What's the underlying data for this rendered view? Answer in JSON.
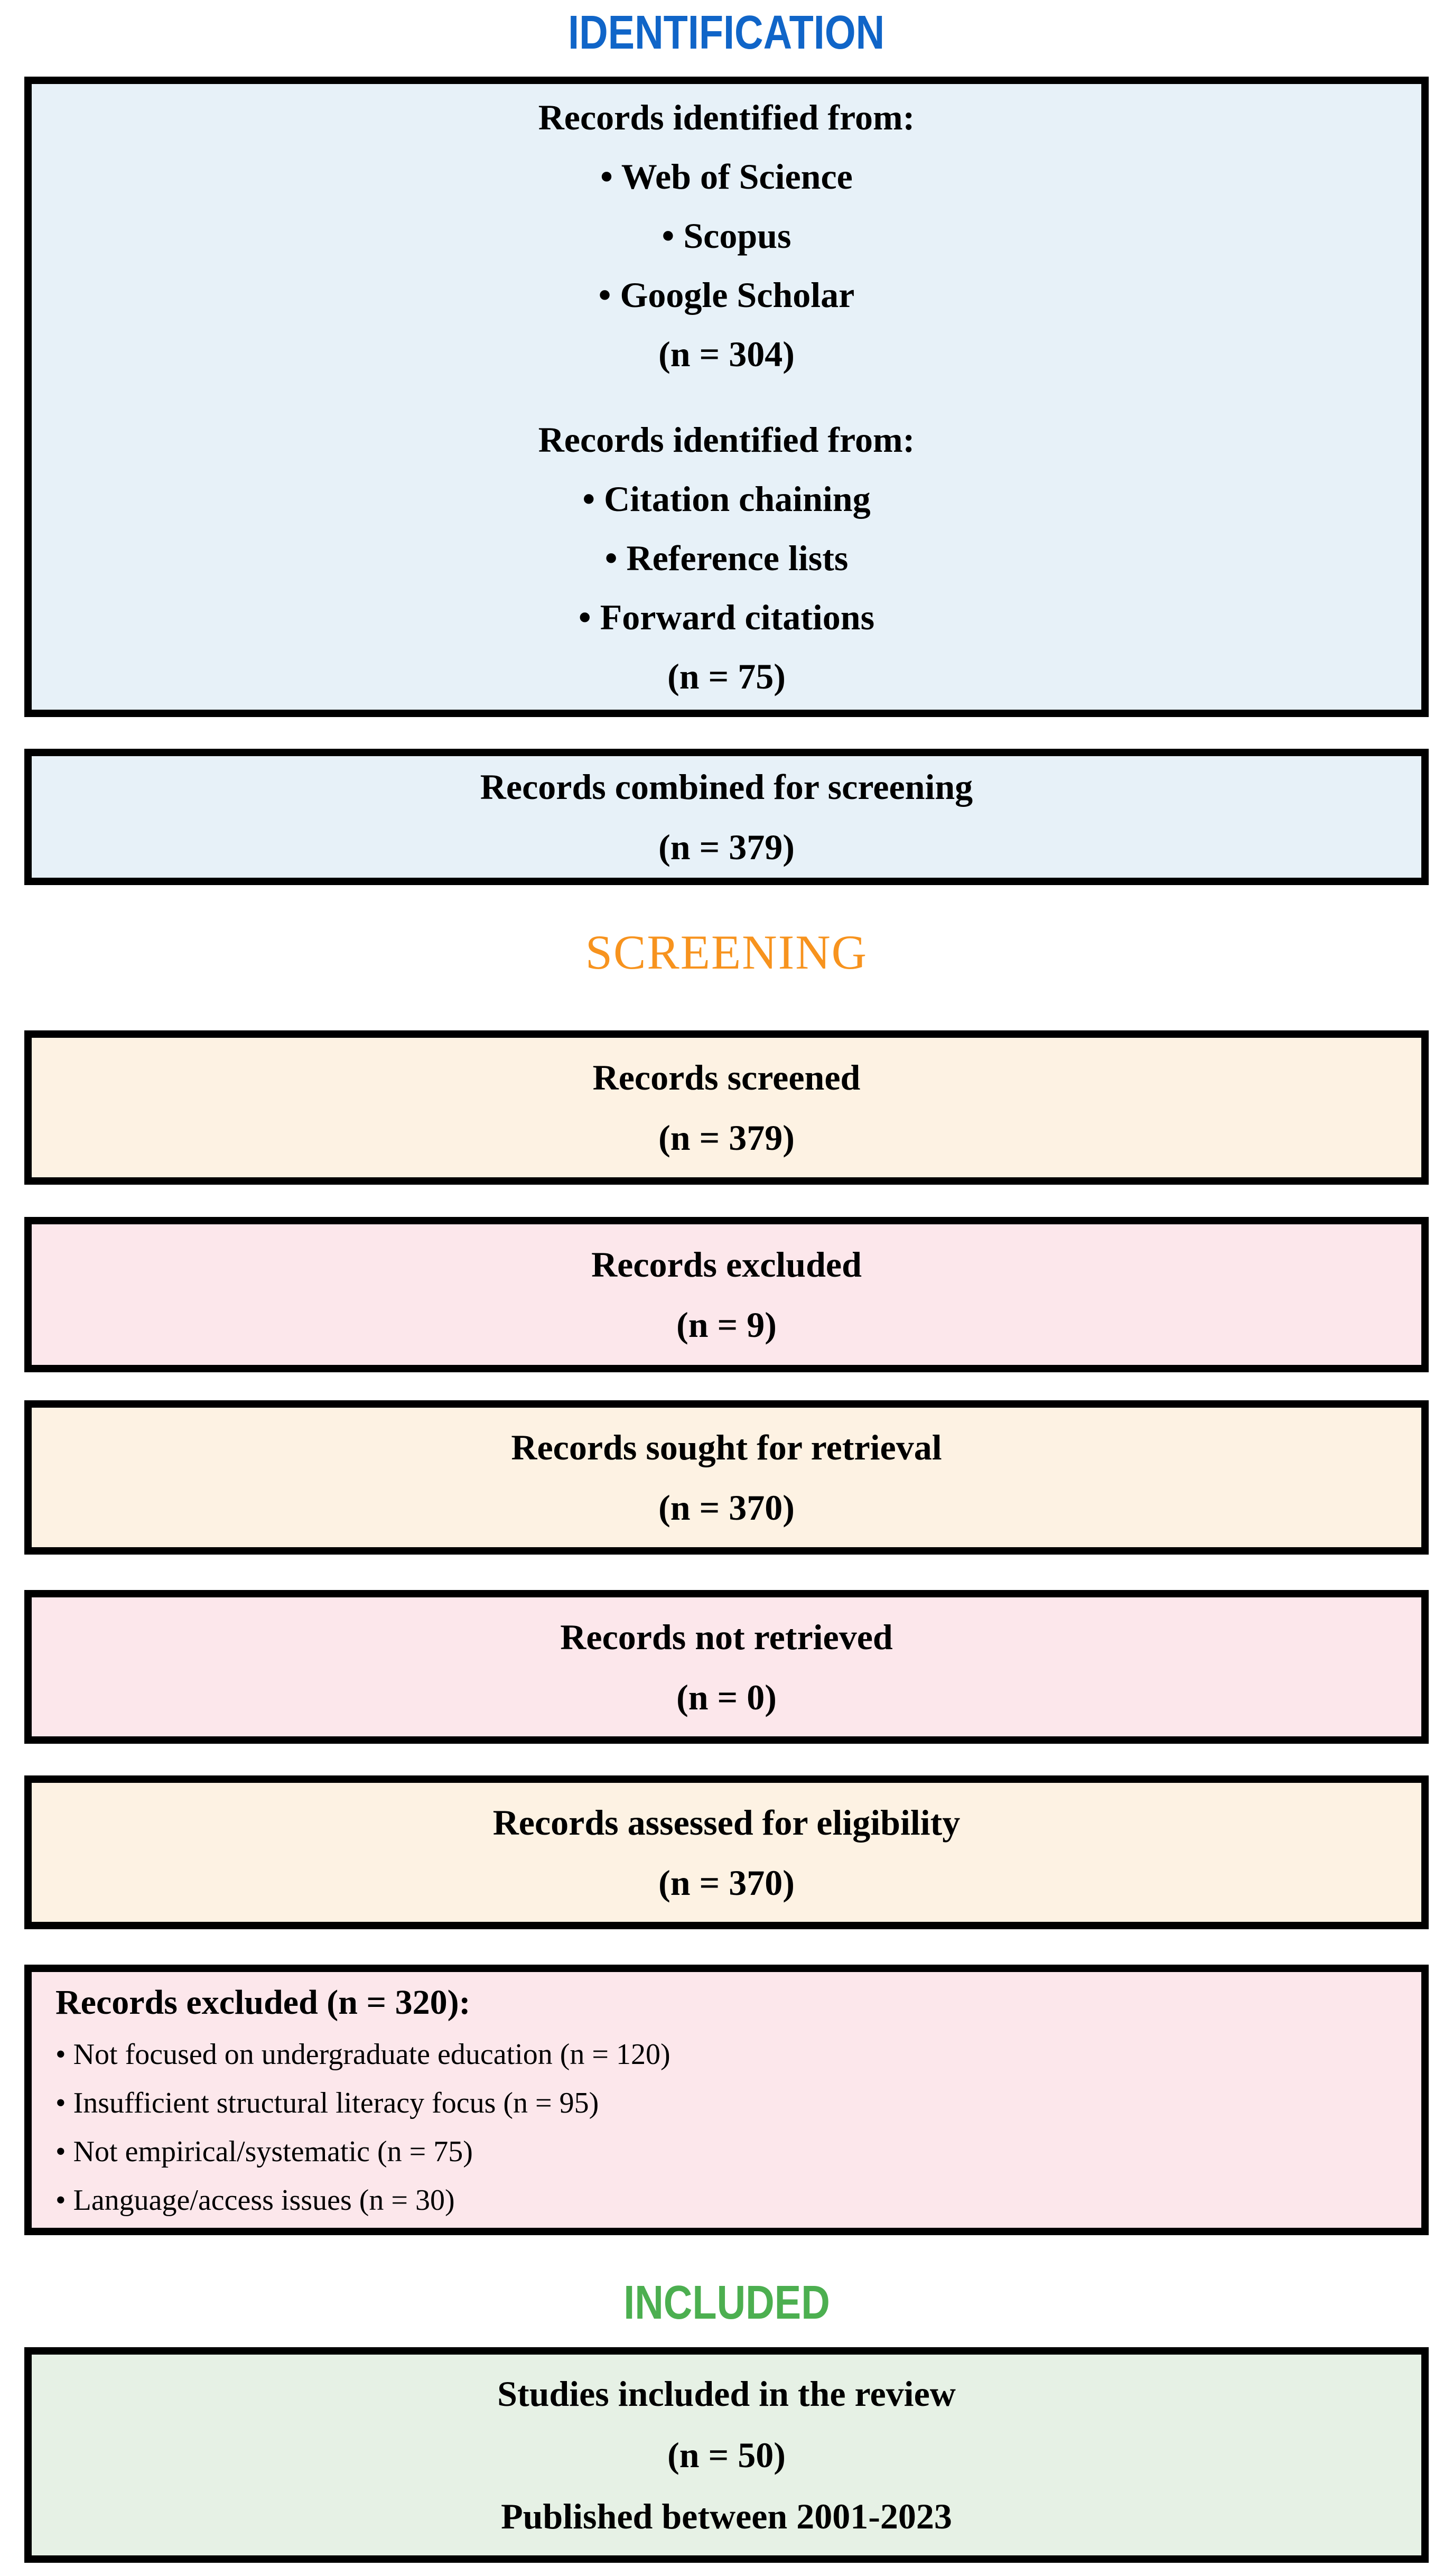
{
  "stages": {
    "identification": {
      "label": "IDENTIFICATION",
      "color": "#1065C8"
    },
    "screening": {
      "label": "SCREENING",
      "color": "#F7931E"
    },
    "included": {
      "label": "INCLUDED",
      "color": "#4CAF50"
    }
  },
  "colors": {
    "page_background": "#FFFFFF",
    "box_border": "#000000",
    "text": "#000000",
    "identification_box_fill": "#E7F1F8",
    "screening_box_fill": "#FDF2E3",
    "excluded_box_fill": "#FCE7EB",
    "included_box_fill": "#E6F1E5"
  },
  "boxes": {
    "identified": {
      "database_group": {
        "title": "Records identified from:",
        "items": [
          "• Web of Science",
          "• Scopus",
          "• Google Scholar"
        ],
        "count": "(n = 304)"
      },
      "citation_group": {
        "title": "Records identified from:",
        "items": [
          "• Citation chaining",
          "• Reference lists",
          "• Forward citations"
        ],
        "count": "(n = 75)"
      }
    },
    "combined": {
      "line1": "Records combined for screening",
      "line2": "(n = 379)"
    },
    "screened": {
      "line1": "Records screened",
      "line2": "(n = 379)"
    },
    "excluded": {
      "line1": "Records excluded",
      "line2": "(n = 9)"
    },
    "sought": {
      "line1": "Records sought for retrieval",
      "line2": "(n = 370)"
    },
    "not_retrieved": {
      "line1": "Records not retrieved",
      "line2": "(n = 0)"
    },
    "assessed": {
      "line1": "Records assessed for eligibility",
      "line2": "(n = 370)"
    },
    "excluded_detail": {
      "title": "Records excluded (n = 320):",
      "items": [
        "• Not focused on undergraduate education (n = 120)",
        "• Insufficient structural literacy focus (n = 95)",
        "• Not empirical/systematic (n = 75)",
        "• Language/access issues (n = 30)"
      ]
    },
    "included_studies": {
      "line1": "Studies included in the review",
      "line2": "(n = 50)",
      "line3": "Published between 2001-2023"
    }
  }
}
